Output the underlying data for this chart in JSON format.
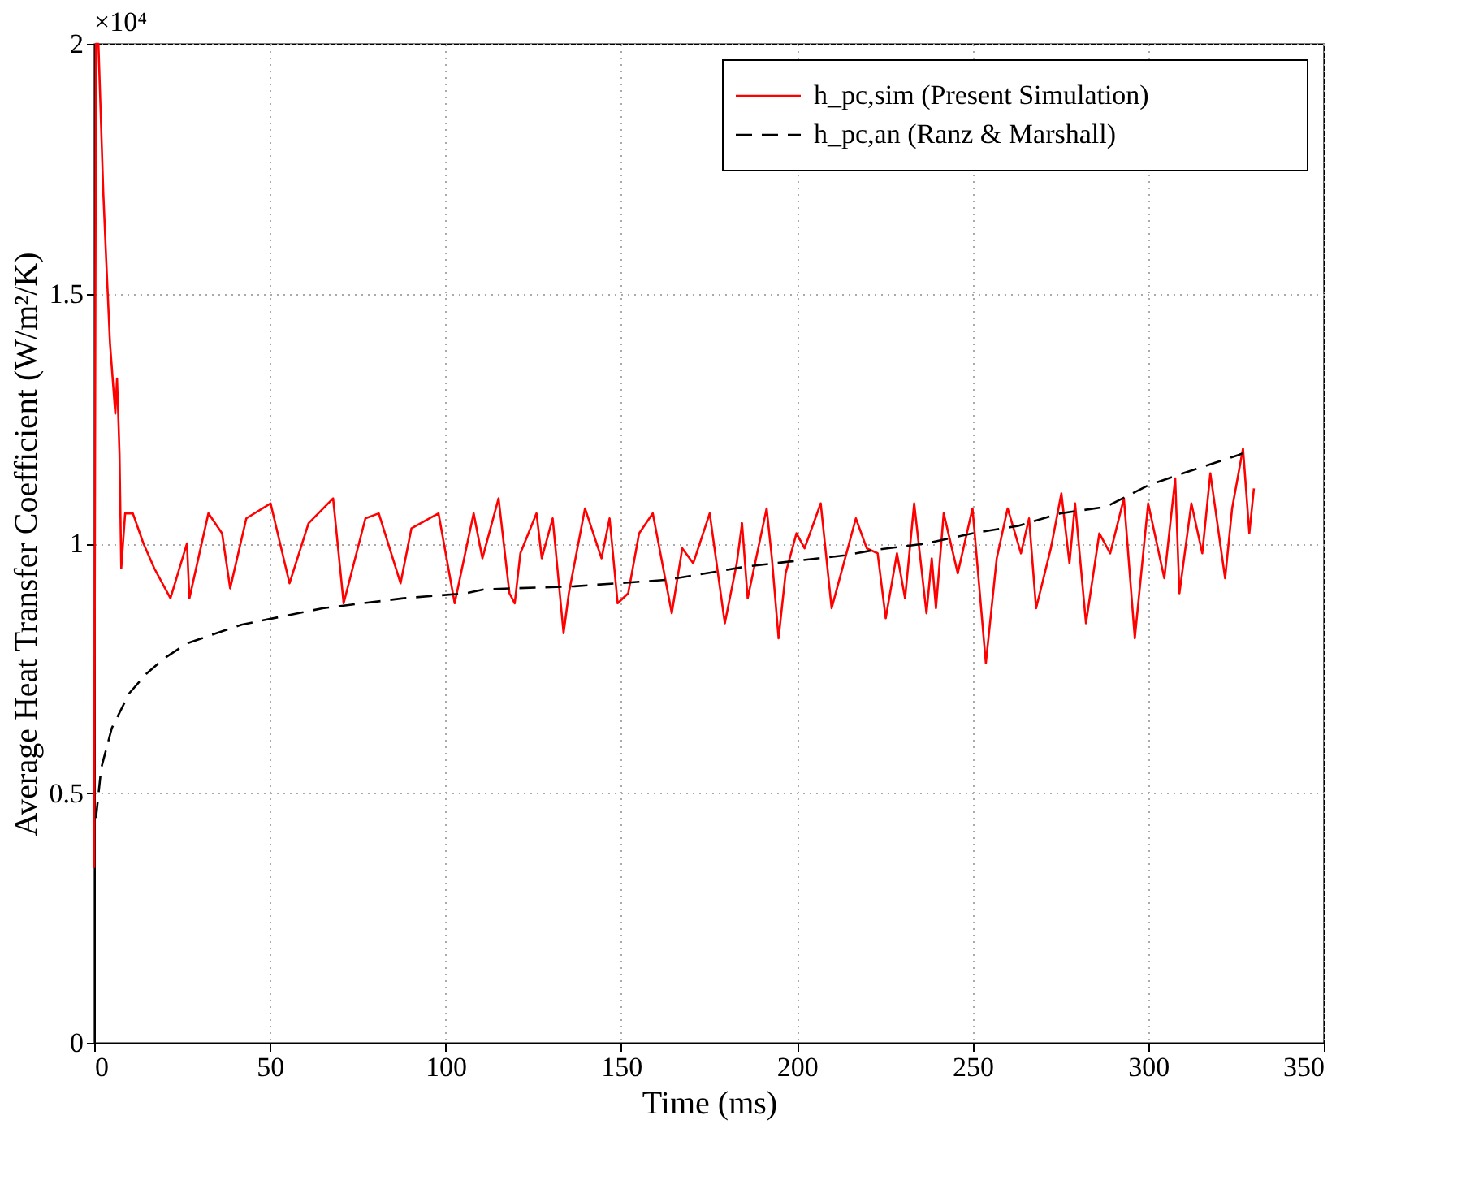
{
  "chart_data": {
    "type": "line",
    "xlabel": "Time (ms)",
    "ylabel": "Average Heat Transfer Coefficient (W/m²/K)",
    "annotations": [
      "×10⁴"
    ],
    "xlim": [
      0,
      350
    ],
    "xticks": [
      0,
      50,
      100,
      150,
      200,
      250,
      300,
      350
    ],
    "ylim": [
      0,
      2
    ],
    "yticks": [
      0,
      0.5,
      1,
      1.5,
      2
    ],
    "grid": true,
    "legend": "top right",
    "series": [
      {
        "name": "h_pc,sim (Present Simulation)",
        "color": "#ff0000",
        "line_style": "solid",
        "x": [
          0,
          0.5,
          1.2,
          2.6,
          3.4,
          4.5,
          6.0,
          6.5,
          7.2,
          7.7,
          8.8,
          11.0,
          14.0,
          17.1,
          21.7,
          26.4,
          27.1,
          32.5,
          36.4,
          38.7,
          43.3,
          50.2,
          55.6,
          61.0,
          68.0,
          71.0,
          77.2,
          81.0,
          87.2,
          90.3,
          98.0,
          102.6,
          108.0,
          110.5,
          115.1,
          118.2,
          119.7,
          121.3,
          125.9,
          127.4,
          130.5,
          133.6,
          135.1,
          139.7,
          144.4,
          146.7,
          149.0,
          152.0,
          155.1,
          159.0,
          164.4,
          167.4,
          170.5,
          175.2,
          179.5,
          182.9,
          184.4,
          186.0,
          191.4,
          192.9,
          194.8,
          196.8,
          199.9,
          202.2,
          206.8,
          209.9,
          212.2,
          216.8,
          219.9,
          223.0,
          225.3,
          228.5,
          230.8,
          233.4,
          236.9,
          238.4,
          239.6,
          241.8,
          245.8,
          250.0,
          253.8,
          256.9,
          260.0,
          263.8,
          266.1,
          268.1,
          272.3,
          275.3,
          277.6,
          279.2,
          282.3,
          286.1,
          289.2,
          293.1,
          296.2,
          300.0,
          304.6,
          307.7,
          308.9,
          312.3,
          315.4,
          317.7,
          321.9,
          323.9,
          327.0,
          328.8,
          330.1
        ],
        "values": [
          0.35,
          2.0,
          2.0,
          1.7,
          1.57,
          1.4,
          1.26,
          1.33,
          1.18,
          0.95,
          1.06,
          1.06,
          1.0,
          0.95,
          0.89,
          1.0,
          0.89,
          1.06,
          1.02,
          0.91,
          1.05,
          1.08,
          0.92,
          1.04,
          1.09,
          0.88,
          1.05,
          1.06,
          0.92,
          1.03,
          1.06,
          0.88,
          1.06,
          0.97,
          1.09,
          0.9,
          0.88,
          0.98,
          1.06,
          0.97,
          1.05,
          0.82,
          0.9,
          1.07,
          0.97,
          1.05,
          0.88,
          0.9,
          1.02,
          1.06,
          0.86,
          0.99,
          0.96,
          1.06,
          0.84,
          0.96,
          1.04,
          0.89,
          1.07,
          0.97,
          0.81,
          0.94,
          1.02,
          0.99,
          1.08,
          0.87,
          0.93,
          1.05,
          0.99,
          0.98,
          0.85,
          0.98,
          0.89,
          1.08,
          0.86,
          0.97,
          0.87,
          1.06,
          0.94,
          1.07,
          0.76,
          0.97,
          1.07,
          0.98,
          1.05,
          0.87,
          0.99,
          1.1,
          0.96,
          1.08,
          0.84,
          1.02,
          0.98,
          1.09,
          0.81,
          1.08,
          0.93,
          1.13,
          0.9,
          1.08,
          0.98,
          1.14,
          0.93,
          1.07,
          1.19,
          1.02,
          1.11
        ]
      },
      {
        "name": "h_pc,an (Ranz & Marshall)",
        "color": "#000000",
        "line_style": "dashed",
        "x": [
          0.5,
          2,
          5,
          10,
          15,
          20,
          26.5,
          41.9,
          65,
          88,
          105.9,
          111,
          136.7,
          163,
          186,
          213.7,
          221.5,
          237,
          250,
          263,
          275,
          288,
          300,
          309,
          327
        ],
        "values": [
          0.45,
          0.55,
          0.63,
          0.7,
          0.74,
          0.77,
          0.8,
          0.837,
          0.87,
          0.89,
          0.9,
          0.908,
          0.914,
          0.927,
          0.954,
          0.976,
          0.986,
          1.0,
          1.02,
          1.035,
          1.06,
          1.073,
          1.116,
          1.138,
          1.18
        ]
      }
    ]
  }
}
